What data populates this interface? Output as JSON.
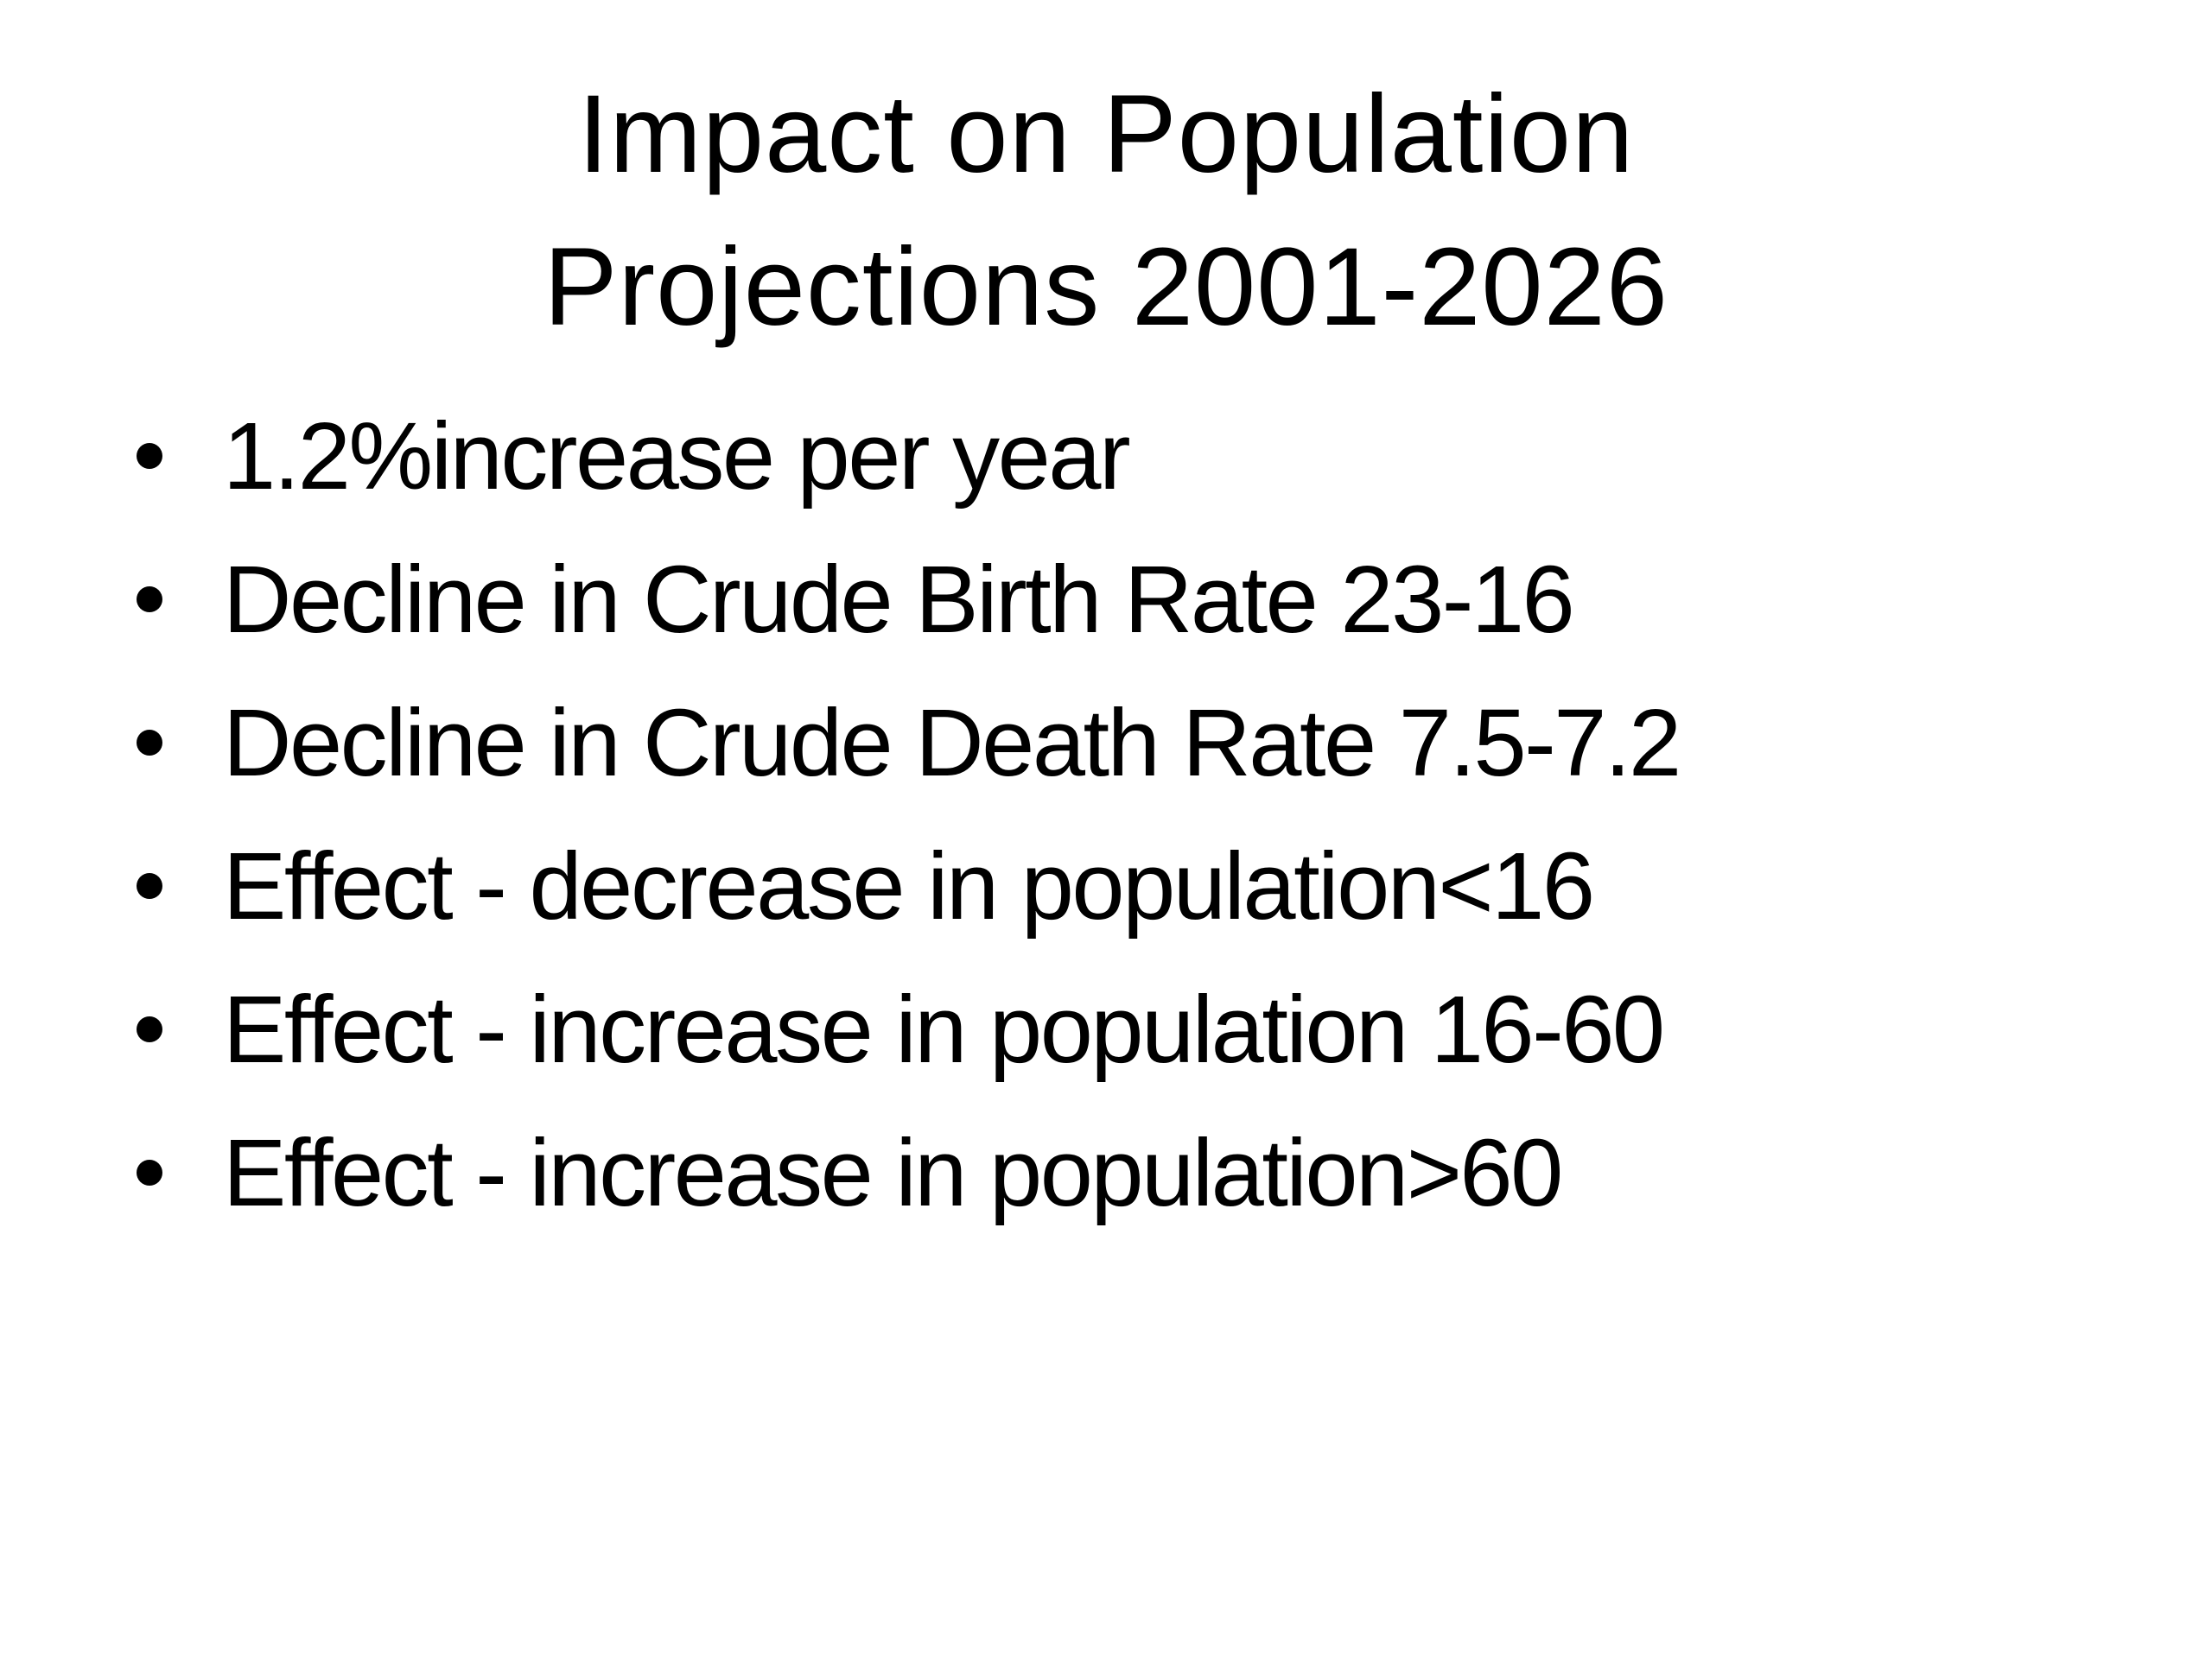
{
  "slide": {
    "background_color": "#ffffff",
    "text_color": "#000000",
    "title": {
      "line1": "Impact on Population",
      "line2": "Projections 2001-2026"
    },
    "bullets": [
      "1.2%increase per year",
      "Decline in Crude Birth Rate 23-16",
      "Decline in Crude Death Rate 7.5-7.2",
      "Effect - decrease in population<16",
      "Effect - increase in population 16-60",
      "Effect - increase in population>60"
    ]
  }
}
